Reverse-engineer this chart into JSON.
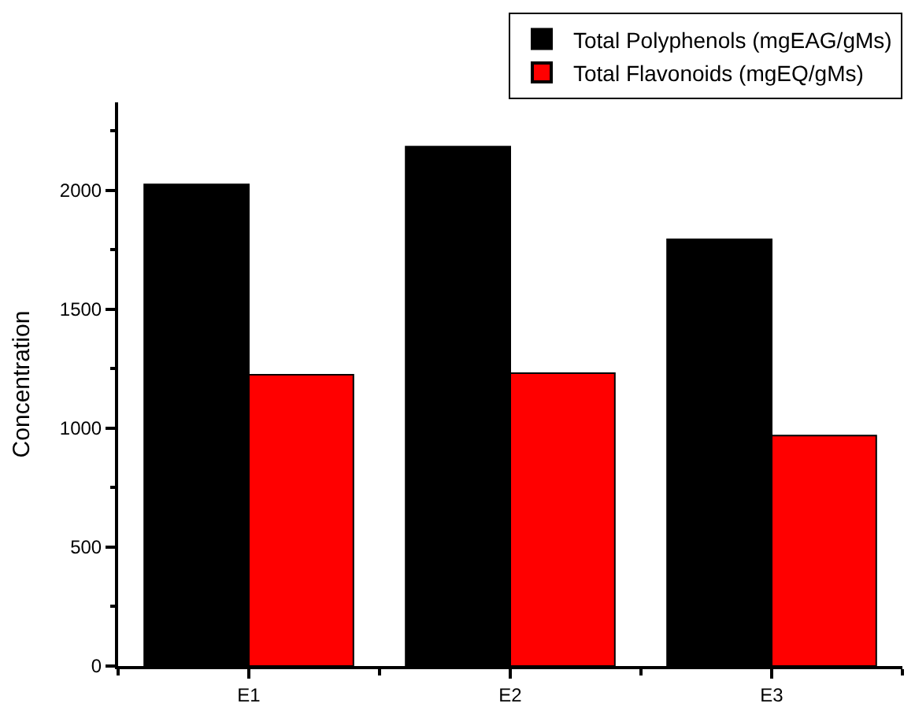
{
  "chart_data": {
    "type": "bar",
    "ylabel": "Concentration",
    "categories": [
      "E1",
      "E2",
      "E3"
    ],
    "series": [
      {
        "name": "Total Polyphenols (mgEAG/gMs)",
        "color": "#000000",
        "values": [
          2025,
          2184,
          1794
        ]
      },
      {
        "name": "Total Flavonoids (mgEQ/gMs)",
        "color": "#ff0000",
        "values": [
          1225,
          1231,
          969
        ]
      }
    ],
    "ylim": [
      0,
      2370
    ],
    "yticks": [
      0,
      500,
      1000,
      1500,
      2000
    ],
    "legend": "top right"
  }
}
